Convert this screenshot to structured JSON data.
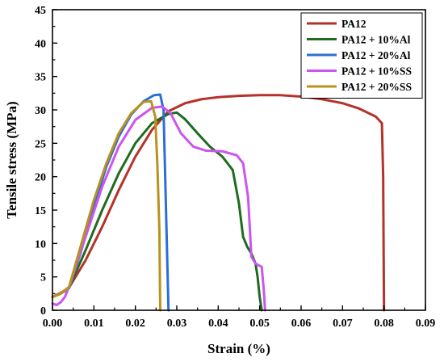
{
  "chart_data": {
    "type": "line",
    "xlabel": "Strain (%)",
    "ylabel": "Tensile stress (MPa)",
    "xlim": [
      0,
      0.09
    ],
    "ylim": [
      0,
      45
    ],
    "x_ticks": [
      "0.00",
      "0.01",
      "0.02",
      "0.03",
      "0.04",
      "0.05",
      "0.06",
      "0.07",
      "0.08",
      "0.09"
    ],
    "y_ticks": [
      "0",
      "5",
      "10",
      "15",
      "20",
      "25",
      "30",
      "35",
      "40",
      "45"
    ],
    "grid": false,
    "legend_position": "top-right",
    "series": [
      {
        "name": "PA12",
        "color": "#b5322a",
        "points": [
          [
            0,
            2.0
          ],
          [
            0.002,
            2.6
          ],
          [
            0.004,
            3.4
          ],
          [
            0.008,
            7.5
          ],
          [
            0.012,
            12.5
          ],
          [
            0.016,
            18.0
          ],
          [
            0.02,
            23.0
          ],
          [
            0.024,
            27.0
          ],
          [
            0.028,
            29.8
          ],
          [
            0.032,
            31.0
          ],
          [
            0.036,
            31.6
          ],
          [
            0.04,
            31.9
          ],
          [
            0.045,
            32.1
          ],
          [
            0.05,
            32.2
          ],
          [
            0.055,
            32.2
          ],
          [
            0.06,
            32.0
          ],
          [
            0.065,
            31.6
          ],
          [
            0.07,
            31.0
          ],
          [
            0.074,
            30.2
          ],
          [
            0.078,
            29.0
          ],
          [
            0.0795,
            28.0
          ],
          [
            0.0798,
            20.0
          ],
          [
            0.08,
            0
          ]
        ]
      },
      {
        "name": "PA12 + 10%Al",
        "color": "#1f6b1f",
        "points": [
          [
            0,
            2.0
          ],
          [
            0.002,
            2.5
          ],
          [
            0.004,
            3.4
          ],
          [
            0.008,
            9.0
          ],
          [
            0.012,
            15.0
          ],
          [
            0.016,
            20.5
          ],
          [
            0.02,
            25.0
          ],
          [
            0.024,
            28.0
          ],
          [
            0.028,
            29.4
          ],
          [
            0.03,
            29.6
          ],
          [
            0.032,
            28.6
          ],
          [
            0.035,
            26.5
          ],
          [
            0.038,
            24.5
          ],
          [
            0.041,
            23.0
          ],
          [
            0.0435,
            21.0
          ],
          [
            0.045,
            16.0
          ],
          [
            0.046,
            11.0
          ],
          [
            0.047,
            9.5
          ],
          [
            0.048,
            8.5
          ],
          [
            0.049,
            7.0
          ],
          [
            0.0495,
            5.0
          ],
          [
            0.05,
            2.0
          ],
          [
            0.0505,
            0
          ]
        ]
      },
      {
        "name": "PA12 + 20%Al",
        "color": "#2b6fd6",
        "points": [
          [
            0,
            2.0
          ],
          [
            0.002,
            2.5
          ],
          [
            0.004,
            3.3
          ],
          [
            0.007,
            9.0
          ],
          [
            0.01,
            15.5
          ],
          [
            0.013,
            21.5
          ],
          [
            0.016,
            26.0
          ],
          [
            0.019,
            29.3
          ],
          [
            0.022,
            31.3
          ],
          [
            0.0245,
            32.2
          ],
          [
            0.026,
            32.3
          ],
          [
            0.0268,
            30.0
          ],
          [
            0.0272,
            20.0
          ],
          [
            0.0276,
            10.0
          ],
          [
            0.028,
            0
          ]
        ]
      },
      {
        "name": "PA12 + 10%SS",
        "color": "#cc55ee",
        "points": [
          [
            0,
            1.0
          ],
          [
            0.001,
            0.8
          ],
          [
            0.002,
            1.2
          ],
          [
            0.003,
            2.0
          ],
          [
            0.004,
            3.5
          ],
          [
            0.008,
            11.0
          ],
          [
            0.012,
            18.5
          ],
          [
            0.016,
            24.5
          ],
          [
            0.02,
            28.5
          ],
          [
            0.024,
            30.3
          ],
          [
            0.0265,
            30.5
          ],
          [
            0.0285,
            29.5
          ],
          [
            0.031,
            26.5
          ],
          [
            0.034,
            24.5
          ],
          [
            0.037,
            23.9
          ],
          [
            0.041,
            23.8
          ],
          [
            0.0445,
            23.2
          ],
          [
            0.046,
            22.0
          ],
          [
            0.0472,
            17.0
          ],
          [
            0.048,
            8.0
          ],
          [
            0.049,
            7.0
          ],
          [
            0.0505,
            6.5
          ],
          [
            0.051,
            3.0
          ],
          [
            0.0513,
            0
          ]
        ]
      },
      {
        "name": "PA12 + 20%SS",
        "color": "#b8921e",
        "points": [
          [
            0,
            2.0
          ],
          [
            0.002,
            2.5
          ],
          [
            0.004,
            3.5
          ],
          [
            0.007,
            10.0
          ],
          [
            0.01,
            16.5
          ],
          [
            0.013,
            22.0
          ],
          [
            0.016,
            26.5
          ],
          [
            0.019,
            29.5
          ],
          [
            0.022,
            31.2
          ],
          [
            0.0238,
            31.3
          ],
          [
            0.0248,
            29.0
          ],
          [
            0.0253,
            22.0
          ],
          [
            0.0258,
            12.0
          ],
          [
            0.026,
            0
          ]
        ]
      }
    ]
  }
}
